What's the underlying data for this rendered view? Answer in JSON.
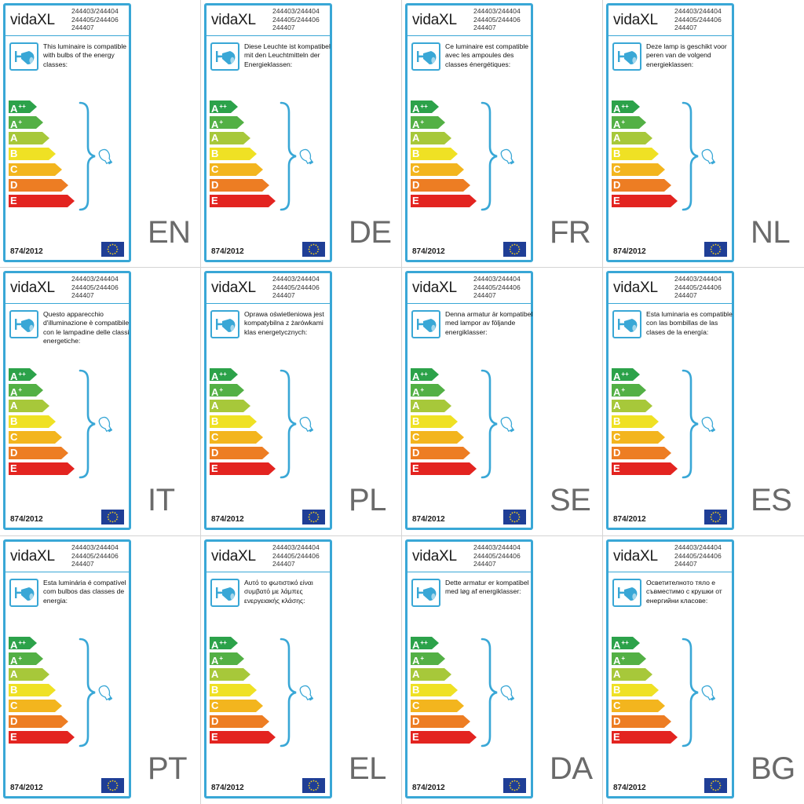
{
  "brand": "vidaXL",
  "codes": [
    "244403/244404",
    "244405/244406",
    "244407"
  ],
  "regulation": "874/2012",
  "classes": [
    {
      "letter": "A",
      "sup": "++",
      "color": "#2ca24a"
    },
    {
      "letter": "A",
      "sup": "+",
      "color": "#53b045"
    },
    {
      "letter": "A",
      "sup": "",
      "color": "#a7c83a"
    },
    {
      "letter": "B",
      "sup": "",
      "color": "#efe124"
    },
    {
      "letter": "C",
      "sup": "",
      "color": "#f3b51e"
    },
    {
      "letter": "D",
      "sup": "",
      "color": "#ed7d23"
    },
    {
      "letter": "E",
      "sup": "",
      "color": "#e32420"
    }
  ],
  "colors": {
    "frame": "#39a7d6",
    "lamp": "#39a7d6",
    "eu_flag": "#1f3e96",
    "eu_stars": "#f7d117"
  },
  "icons": {
    "lamp": "spotlight-lamp-icon",
    "bulb": "light-bulb-icon",
    "brace": "curly-brace",
    "eu": "eu-flag-icon"
  },
  "labels": [
    {
      "lang": "EN",
      "text": "This luminaire is compatible with bulbs of the energy classes:"
    },
    {
      "lang": "DE",
      "text": "Diese Leuchte ist kompatibel mit den Leuchtmitteln der Energieklassen:"
    },
    {
      "lang": "FR",
      "text": "Ce luminaire est compatible avec les ampoules des classes énergétiques:"
    },
    {
      "lang": "NL",
      "text": "Deze lamp is geschikt voor peren van de volgend energieklassen:"
    },
    {
      "lang": "IT",
      "text": "Questo apparecchio d'illuminazione è compatibile con le lampadine delle classi energetiche:"
    },
    {
      "lang": "PL",
      "text": "Oprawa oświetleniowa jest kompatybilna z żarówkami klas energetycznych:"
    },
    {
      "lang": "SE",
      "text": "Denna armatur är kompatibel med lampor av följande energiklasser:"
    },
    {
      "lang": "ES",
      "text": "Esta luminaria es compatible con las bombillas de las clases de la energía:"
    },
    {
      "lang": "PT",
      "text": "Esta luminária é compatível com bulbos das classes de energia:"
    },
    {
      "lang": "EL",
      "text": "Αυτό το φωτιστικό είναι συμβατό με λάμπες ενεργειακής κλάσης:"
    },
    {
      "lang": "DA",
      "text": "Dette armatur er kompatibel med løg af energiklasser:"
    },
    {
      "lang": "BG",
      "text": "Осветителното тяло е съвместимо с крушки от енергийни класове:"
    }
  ]
}
